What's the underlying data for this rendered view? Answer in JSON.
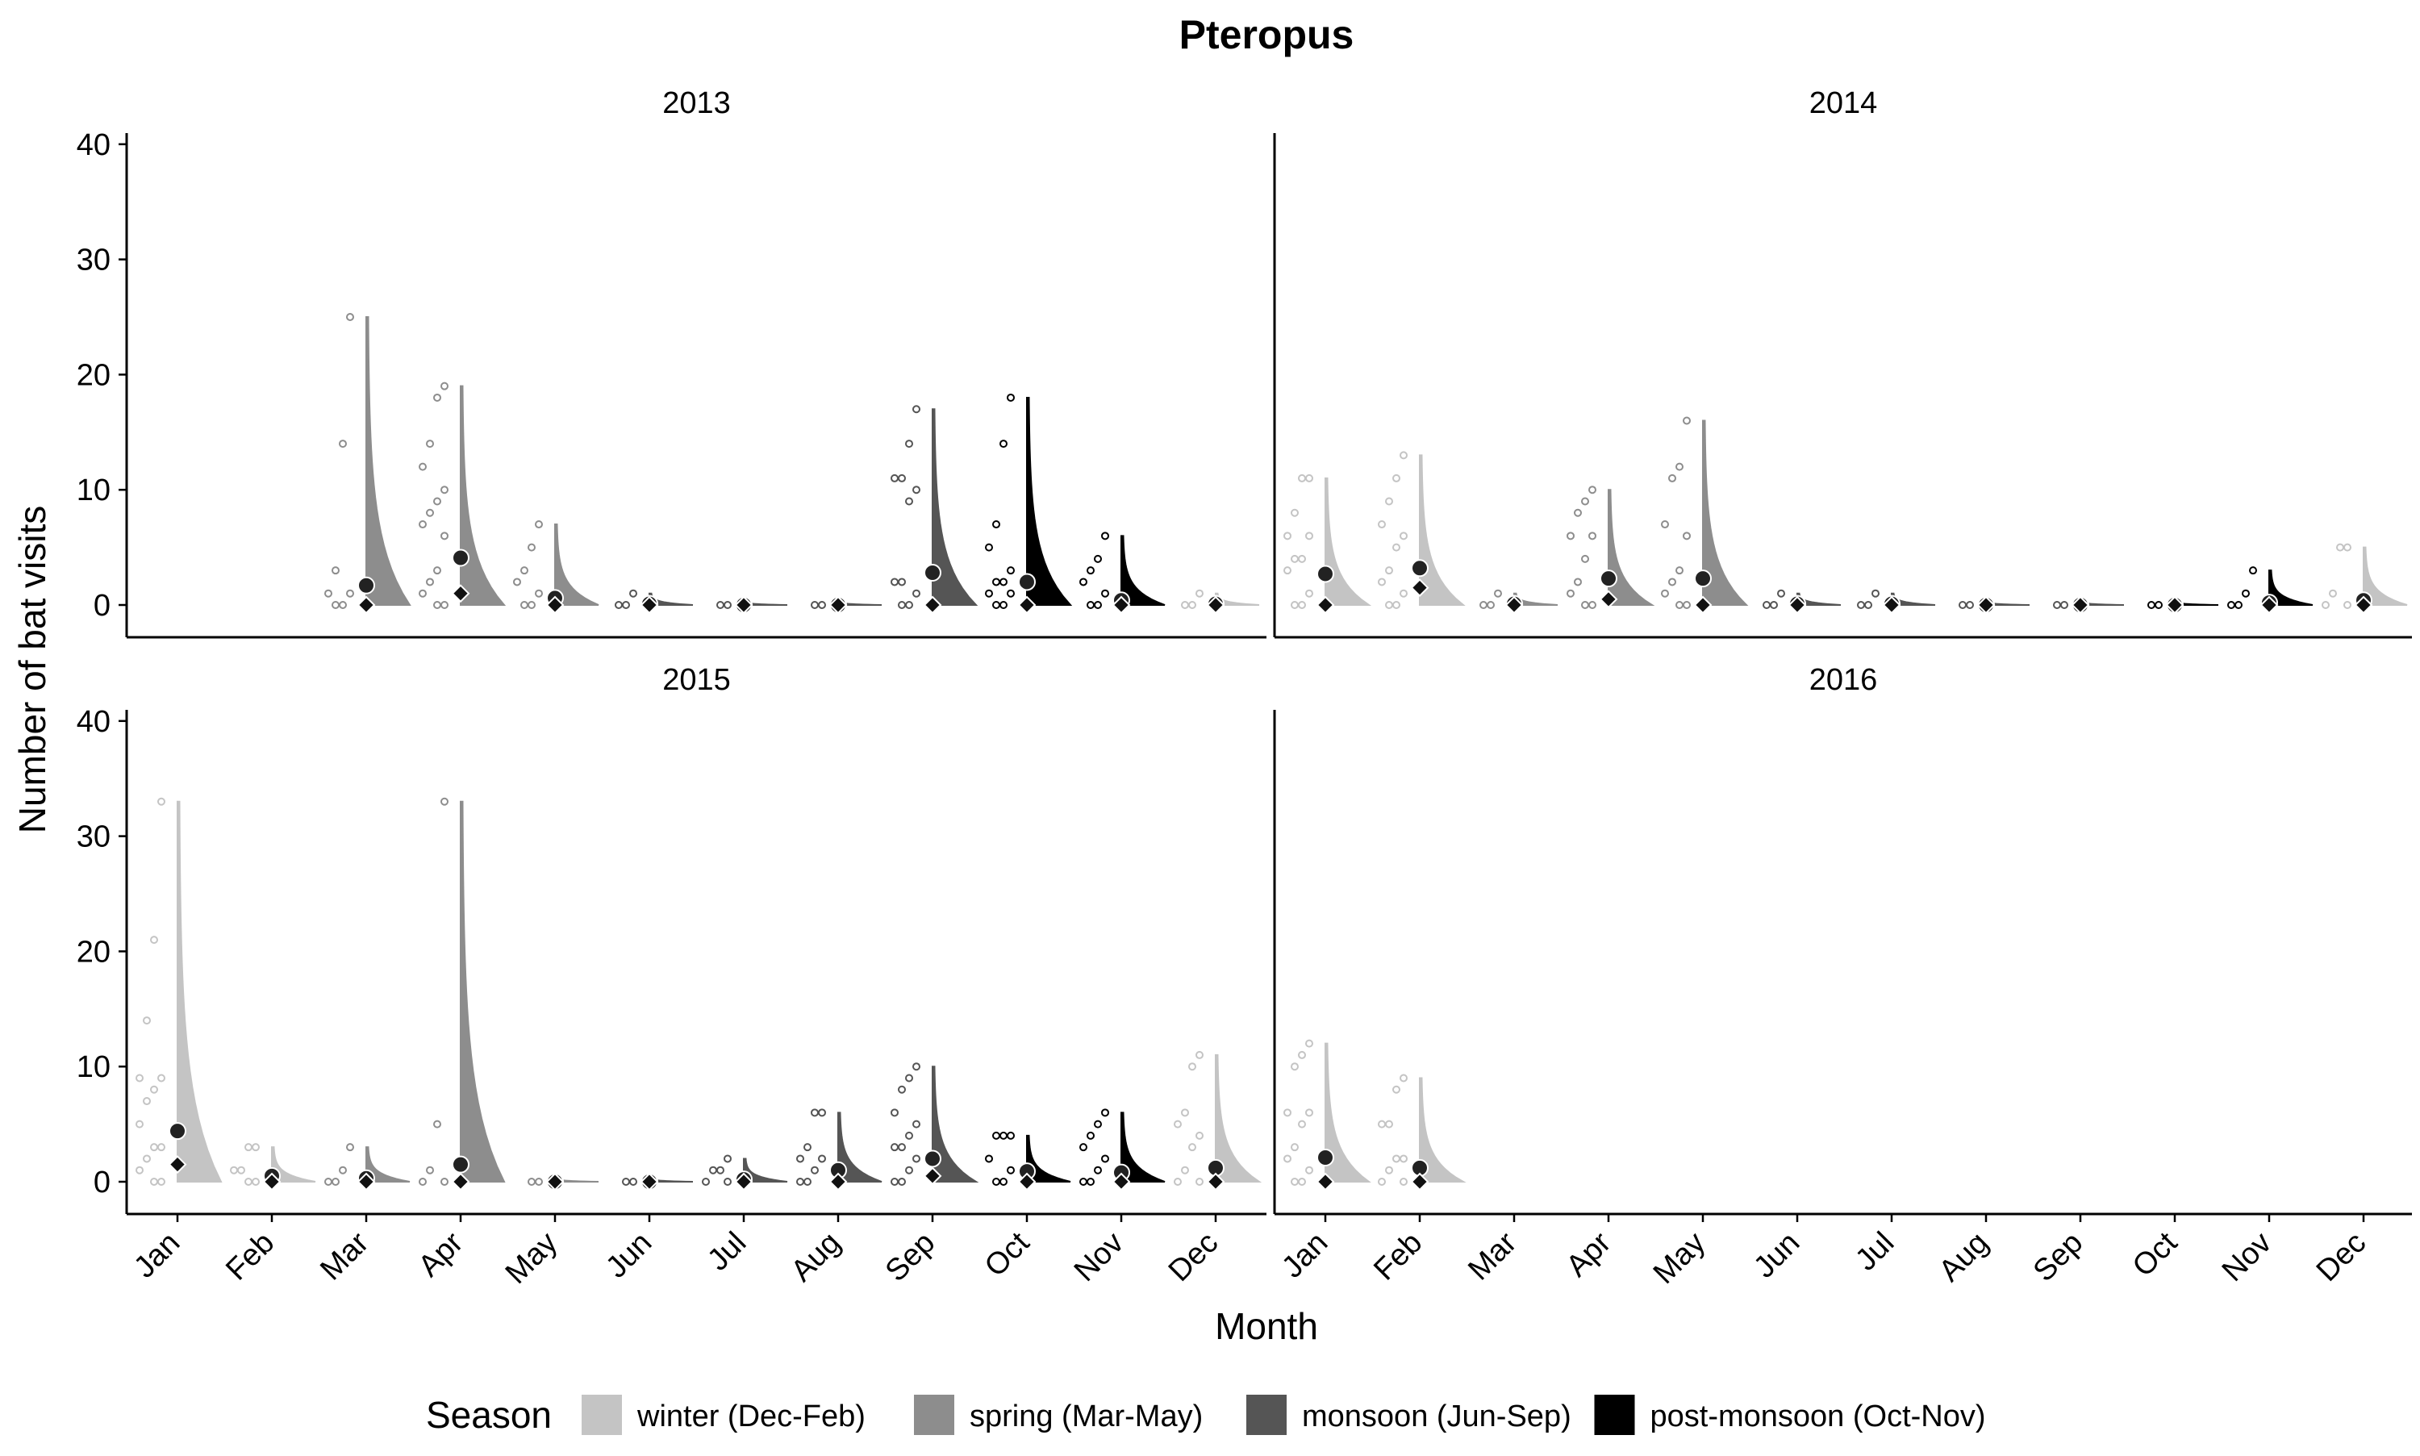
{
  "chart_data": {
    "type": "violin",
    "title": "Pteropus",
    "xlabel": "Month",
    "ylabel": "Number of bat visits",
    "ylim": [
      -2,
      42
    ],
    "yticks": [
      0,
      10,
      20,
      30,
      40
    ],
    "months": [
      "Jan",
      "Feb",
      "Mar",
      "Apr",
      "May",
      "Jun",
      "Jul",
      "Aug",
      "Sep",
      "Oct",
      "Nov",
      "Dec"
    ],
    "legend": {
      "title": "Season",
      "position": "bottom",
      "entries": [
        {
          "key": "winter",
          "label": "winter (Dec-Feb)",
          "color": "#c4c4c4"
        },
        {
          "key": "spring",
          "label": "spring (Mar-May)",
          "color": "#8d8d8d"
        },
        {
          "key": "monsoon",
          "label": "monsoon (Jun-Sep)",
          "color": "#555555"
        },
        {
          "key": "postmonsoon",
          "label": "post-monsoon (Oct-Nov)",
          "color": "#000000"
        }
      ]
    },
    "panels": [
      {
        "year": "2013",
        "months": [
          {
            "month": "Mar",
            "max": 25,
            "mean": 1.7,
            "median": 0,
            "points": [
              25,
              14,
              3,
              1,
              1,
              0,
              0
            ]
          },
          {
            "month": "Apr",
            "max": 19,
            "mean": 4.1,
            "median": 1,
            "points": [
              19,
              18,
              14,
              12,
              10,
              9,
              8,
              7,
              6,
              3,
              2,
              1,
              0,
              0
            ]
          },
          {
            "month": "May",
            "max": 7,
            "mean": 0.6,
            "median": 0,
            "points": [
              7,
              5,
              3,
              2,
              1,
              0,
              0
            ]
          },
          {
            "month": "Jun",
            "max": 1,
            "mean": 0.1,
            "median": 0,
            "points": [
              1,
              0,
              0
            ]
          },
          {
            "month": "Jul",
            "max": 0,
            "mean": 0,
            "median": 0,
            "points": [
              0,
              0
            ]
          },
          {
            "month": "Aug",
            "max": 0,
            "mean": 0,
            "median": 0,
            "points": [
              0,
              0
            ]
          },
          {
            "month": "Sep",
            "max": 17,
            "mean": 2.8,
            "median": 0,
            "points": [
              17,
              14,
              11,
              11,
              10,
              9,
              2,
              2,
              1,
              0,
              0
            ]
          },
          {
            "month": "Oct",
            "max": 18,
            "mean": 2.0,
            "median": 0,
            "points": [
              18,
              14,
              7,
              5,
              3,
              2,
              2,
              1,
              1,
              0,
              0
            ]
          },
          {
            "month": "Nov",
            "max": 6,
            "mean": 0.4,
            "median": 0,
            "points": [
              6,
              4,
              3,
              2,
              1,
              0,
              0
            ]
          },
          {
            "month": "Dec",
            "max": 1,
            "mean": 0.1,
            "median": 0,
            "points": [
              1,
              0,
              0
            ]
          }
        ]
      },
      {
        "year": "2014",
        "months": [
          {
            "month": "Jan",
            "max": 11,
            "mean": 2.7,
            "median": 0,
            "points": [
              11,
              11,
              8,
              6,
              6,
              4,
              4,
              3,
              1,
              0,
              0
            ]
          },
          {
            "month": "Feb",
            "max": 13,
            "mean": 3.2,
            "median": 1.5,
            "points": [
              13,
              11,
              9,
              7,
              6,
              5,
              3,
              2,
              1,
              0,
              0
            ]
          },
          {
            "month": "Mar",
            "max": 1,
            "mean": 0.1,
            "median": 0,
            "points": [
              1,
              0,
              0
            ]
          },
          {
            "month": "Apr",
            "max": 10,
            "mean": 2.3,
            "median": 0.5,
            "points": [
              10,
              9,
              8,
              6,
              6,
              4,
              2,
              1,
              0,
              0
            ]
          },
          {
            "month": "May",
            "max": 16,
            "mean": 2.3,
            "median": 0,
            "points": [
              16,
              12,
              11,
              7,
              6,
              3,
              2,
              1,
              0,
              0
            ]
          },
          {
            "month": "Jun",
            "max": 1,
            "mean": 0.1,
            "median": 0,
            "points": [
              1,
              0,
              0
            ]
          },
          {
            "month": "Jul",
            "max": 1,
            "mean": 0.1,
            "median": 0,
            "points": [
              1,
              0,
              0
            ]
          },
          {
            "month": "Aug",
            "max": 0,
            "mean": 0,
            "median": 0,
            "points": [
              0,
              0
            ]
          },
          {
            "month": "Sep",
            "max": 0,
            "mean": 0,
            "median": 0,
            "points": [
              0,
              0
            ]
          },
          {
            "month": "Oct",
            "max": 0,
            "mean": 0,
            "median": 0,
            "points": [
              0,
              0
            ]
          },
          {
            "month": "Nov",
            "max": 3,
            "mean": 0.2,
            "median": 0,
            "points": [
              3,
              1,
              0,
              0
            ]
          },
          {
            "month": "Dec",
            "max": 5,
            "mean": 0.4,
            "median": 0,
            "points": [
              5,
              5,
              1,
              0,
              0
            ]
          }
        ]
      },
      {
        "year": "2015",
        "months": [
          {
            "month": "Jan",
            "max": 33,
            "mean": 4.4,
            "median": 1.5,
            "points": [
              33,
              21,
              14,
              9,
              9,
              8,
              7,
              5,
              3,
              3,
              2,
              1,
              0,
              0
            ]
          },
          {
            "month": "Feb",
            "max": 3,
            "mean": 0.5,
            "median": 0,
            "points": [
              3,
              3,
              1,
              1,
              0,
              0
            ]
          },
          {
            "month": "Mar",
            "max": 3,
            "mean": 0.3,
            "median": 0,
            "points": [
              3,
              1,
              0,
              0
            ]
          },
          {
            "month": "Apr",
            "max": 33,
            "mean": 1.5,
            "median": 0,
            "points": [
              33,
              5,
              1,
              0,
              0
            ]
          },
          {
            "month": "May",
            "max": 0,
            "mean": 0,
            "median": 0,
            "points": [
              0,
              0
            ]
          },
          {
            "month": "Jun",
            "max": 0,
            "mean": 0,
            "median": 0,
            "points": [
              0,
              0
            ]
          },
          {
            "month": "Jul",
            "max": 2,
            "mean": 0.2,
            "median": 0,
            "points": [
              2,
              1,
              1,
              0,
              0
            ]
          },
          {
            "month": "Aug",
            "max": 6,
            "mean": 1.0,
            "median": 0,
            "points": [
              6,
              6,
              3,
              2,
              2,
              1,
              0,
              0
            ]
          },
          {
            "month": "Sep",
            "max": 10,
            "mean": 2.0,
            "median": 0.5,
            "points": [
              10,
              9,
              8,
              6,
              5,
              4,
              3,
              3,
              2,
              1,
              0,
              0
            ]
          },
          {
            "month": "Oct",
            "max": 4,
            "mean": 0.9,
            "median": 0,
            "points": [
              4,
              4,
              4,
              2,
              1,
              0,
              0
            ]
          },
          {
            "month": "Nov",
            "max": 6,
            "mean": 0.8,
            "median": 0,
            "points": [
              6,
              5,
              4,
              3,
              2,
              1,
              0,
              0
            ]
          },
          {
            "month": "Dec",
            "max": 11,
            "mean": 1.2,
            "median": 0,
            "points": [
              11,
              10,
              6,
              5,
              4,
              3,
              1,
              0,
              0
            ]
          }
        ]
      },
      {
        "year": "2016",
        "months": [
          {
            "month": "Jan",
            "max": 12,
            "mean": 2.1,
            "median": 0,
            "points": [
              12,
              11,
              10,
              6,
              6,
              5,
              3,
              2,
              1,
              0,
              0
            ]
          },
          {
            "month": "Feb",
            "max": 9,
            "mean": 1.2,
            "median": 0,
            "points": [
              9,
              8,
              5,
              5,
              2,
              2,
              1,
              0,
              0
            ]
          }
        ]
      }
    ]
  }
}
